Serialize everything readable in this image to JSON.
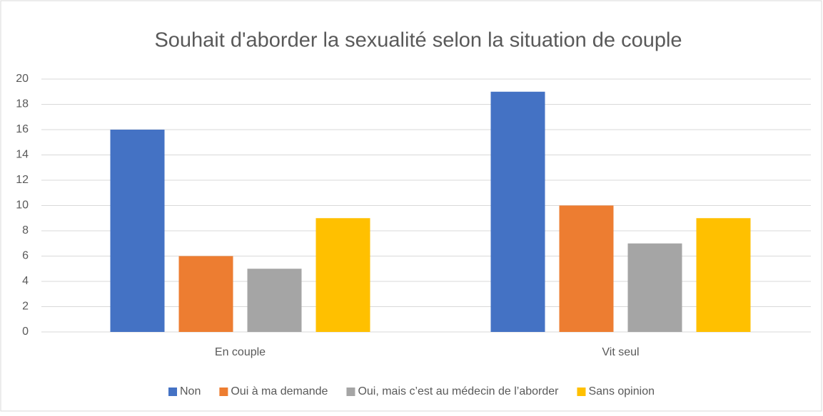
{
  "chart_data": {
    "type": "bar",
    "title": "Souhait d'aborder la sexualité selon la situation de couple",
    "categories": [
      "En couple",
      "Vit seul"
    ],
    "series": [
      {
        "name": "Non",
        "color": "#4472c4",
        "values": [
          16,
          19
        ]
      },
      {
        "name": "Oui à ma demande",
        "color": "#ed7d31",
        "values": [
          6,
          10
        ]
      },
      {
        "name": "Oui, mais c’est au médecin de l’aborder",
        "color": "#a5a5a5",
        "values": [
          5,
          7
        ]
      },
      {
        "name": "Sans opinion",
        "color": "#ffc000",
        "values": [
          9,
          9
        ]
      }
    ],
    "ylim": [
      0,
      20
    ],
    "yticks": [
      0,
      2,
      4,
      6,
      8,
      10,
      12,
      14,
      16,
      18,
      20
    ],
    "grid": true,
    "legend": "bottom"
  }
}
